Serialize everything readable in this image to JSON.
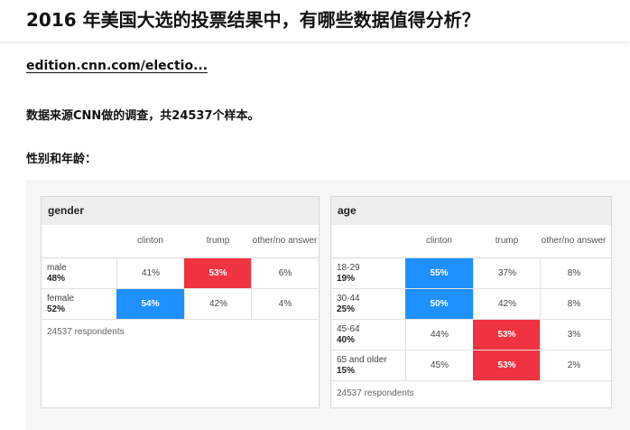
{
  "question_title": "2016 年美国大选的投票结果中，有哪些数据值得分析？",
  "source_link": "edition.cnn.com/electio...",
  "paragraphs": [
    "数据来源CNN做的调查，共24537个样本。",
    "性别和年龄："
  ],
  "colors": {
    "clinton_highlight": "#1e90ff",
    "trump_highlight": "#ef3340"
  },
  "tables": {
    "gender": {
      "title": "gender",
      "columns": [
        "clinton",
        "trump",
        "other/no answer"
      ],
      "rows": [
        {
          "label": "male",
          "share": "48%",
          "values": [
            "41%",
            "53%",
            "6%"
          ],
          "highlight": "trump"
        },
        {
          "label": "female",
          "share": "52%",
          "values": [
            "54%",
            "42%",
            "4%"
          ],
          "highlight": "clinton"
        }
      ],
      "footer": "24537 respondents"
    },
    "age": {
      "title": "age",
      "columns": [
        "clinton",
        "trump",
        "other/no answer"
      ],
      "rows": [
        {
          "label": "18-29",
          "share": "19%",
          "values": [
            "55%",
            "37%",
            "8%"
          ],
          "highlight": "clinton"
        },
        {
          "label": "30-44",
          "share": "25%",
          "values": [
            "50%",
            "42%",
            "8%"
          ],
          "highlight": "clinton"
        },
        {
          "label": "45-64",
          "share": "40%",
          "values": [
            "44%",
            "53%",
            "3%"
          ],
          "highlight": "trump"
        },
        {
          "label": "65 and older",
          "share": "15%",
          "values": [
            "45%",
            "53%",
            "2%"
          ],
          "highlight": "trump"
        }
      ],
      "footer": "24537 respondents"
    }
  }
}
